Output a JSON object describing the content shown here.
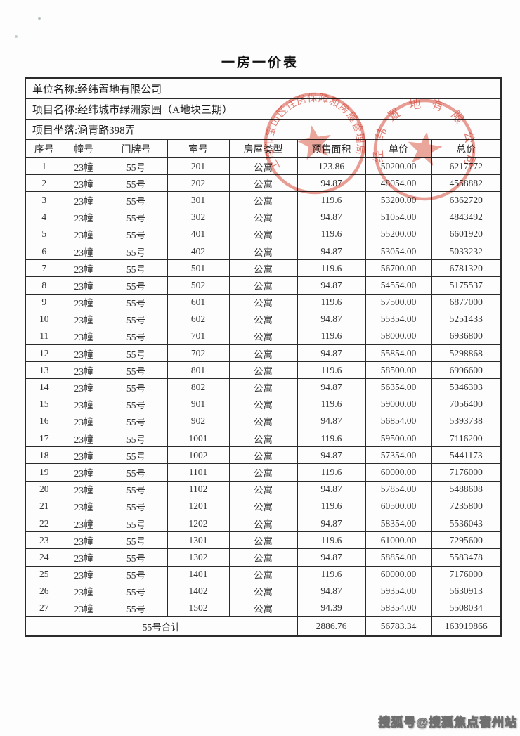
{
  "title": "一房一价表",
  "info": {
    "unit_name": "单位名称:经纬置地有限公司",
    "project_name": "项目名称:经纬城市绿洲家园（A地块三期）",
    "project_location": "项目坐落:涵青路398弄"
  },
  "table": {
    "columns": [
      "序号",
      "幢号",
      "门牌号",
      "室号",
      "房屋类型",
      "预售面积",
      "单价",
      "总价"
    ],
    "rows": [
      [
        "1",
        "23幢",
        "55号",
        "201",
        "公寓",
        "123.86",
        "50200.00",
        "6217772"
      ],
      [
        "2",
        "23幢",
        "55号",
        "202",
        "公寓",
        "94.87",
        "48054.00",
        "4558882"
      ],
      [
        "3",
        "23幢",
        "55号",
        "301",
        "公寓",
        "119.6",
        "53200.00",
        "6362720"
      ],
      [
        "4",
        "23幢",
        "55号",
        "302",
        "公寓",
        "94.87",
        "51054.00",
        "4843492"
      ],
      [
        "5",
        "23幢",
        "55号",
        "401",
        "公寓",
        "119.6",
        "55200.00",
        "6601920"
      ],
      [
        "6",
        "23幢",
        "55号",
        "402",
        "公寓",
        "94.87",
        "53054.00",
        "5033232"
      ],
      [
        "7",
        "23幢",
        "55号",
        "501",
        "公寓",
        "119.6",
        "56700.00",
        "6781320"
      ],
      [
        "8",
        "23幢",
        "55号",
        "502",
        "公寓",
        "94.87",
        "54554.00",
        "5175537"
      ],
      [
        "9",
        "23幢",
        "55号",
        "601",
        "公寓",
        "119.6",
        "57500.00",
        "6877000"
      ],
      [
        "10",
        "23幢",
        "55号",
        "602",
        "公寓",
        "94.87",
        "55354.00",
        "5251433"
      ],
      [
        "11",
        "23幢",
        "55号",
        "701",
        "公寓",
        "119.6",
        "58000.00",
        "6936800"
      ],
      [
        "12",
        "23幢",
        "55号",
        "702",
        "公寓",
        "94.87",
        "55854.00",
        "5298868"
      ],
      [
        "13",
        "23幢",
        "55号",
        "801",
        "公寓",
        "119.6",
        "58500.00",
        "6996600"
      ],
      [
        "14",
        "23幢",
        "55号",
        "802",
        "公寓",
        "94.87",
        "56354.00",
        "5346303"
      ],
      [
        "15",
        "23幢",
        "55号",
        "901",
        "公寓",
        "119.6",
        "59000.00",
        "7056400"
      ],
      [
        "16",
        "23幢",
        "55号",
        "902",
        "公寓",
        "94.87",
        "56854.00",
        "5393738"
      ],
      [
        "17",
        "23幢",
        "55号",
        "1001",
        "公寓",
        "119.6",
        "59500.00",
        "7116200"
      ],
      [
        "18",
        "23幢",
        "55号",
        "1002",
        "公寓",
        "94.87",
        "57354.00",
        "5441173"
      ],
      [
        "19",
        "23幢",
        "55号",
        "1101",
        "公寓",
        "119.6",
        "60000.00",
        "7176000"
      ],
      [
        "20",
        "23幢",
        "55号",
        "1102",
        "公寓",
        "94.87",
        "57854.00",
        "5488608"
      ],
      [
        "21",
        "23幢",
        "55号",
        "1201",
        "公寓",
        "119.6",
        "60500.00",
        "7235800"
      ],
      [
        "22",
        "23幢",
        "55号",
        "1202",
        "公寓",
        "94.87",
        "58354.00",
        "5536043"
      ],
      [
        "23",
        "23幢",
        "55号",
        "1301",
        "公寓",
        "119.6",
        "61000.00",
        "7295600"
      ],
      [
        "24",
        "23幢",
        "55号",
        "1302",
        "公寓",
        "94.87",
        "58854.00",
        "5583478"
      ],
      [
        "25",
        "23幢",
        "55号",
        "1401",
        "公寓",
        "119.6",
        "60000.00",
        "7176000"
      ],
      [
        "26",
        "23幢",
        "55号",
        "1402",
        "公寓",
        "94.87",
        "59354.00",
        "5630913"
      ],
      [
        "27",
        "23幢",
        "55号",
        "1502",
        "公寓",
        "94.39",
        "58354.00",
        "5508034"
      ]
    ],
    "total_row": {
      "label": "55号合计",
      "presale_area": "2886.76",
      "unit_price": "56783.34",
      "total_price": "163919866"
    }
  },
  "stamps": {
    "government_seal_text": "上海市宝山区住房保障和房屋管理局",
    "company_seal_text": "经纬置地有限公司",
    "stamp_color": "#d5432e"
  },
  "watermark": "搜狐号@搜狐焦点宿州站"
}
